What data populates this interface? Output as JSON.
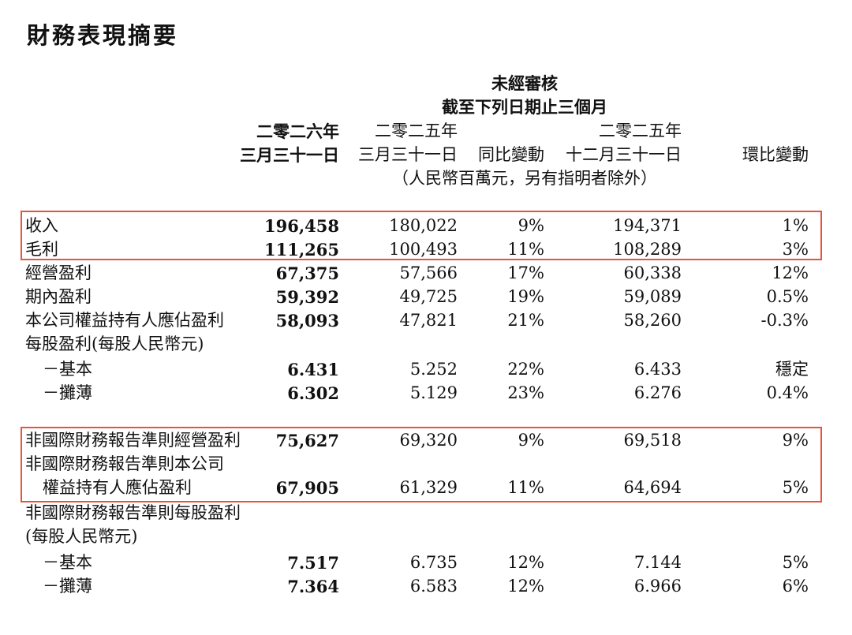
{
  "title": "財務表現摘要",
  "header": {
    "audit": "未經審核",
    "period": "截至下列日期止三個月",
    "col1_year": "二零二六年",
    "col1_date": "三月三十一日",
    "col2_year": "二零二五年",
    "col2_date": "三月三十一日",
    "col3": "同比變動",
    "col4_year": "二零二五年",
    "col4_date": "十二月三十一日",
    "col5": "環比變動",
    "unit": "（人民幣百萬元，另有指明者除外）"
  },
  "rows": [
    {
      "label": "收入",
      "v": [
        "196,458",
        "180,022",
        "9%",
        "194,371",
        "1%"
      ]
    },
    {
      "label": "毛利",
      "v": [
        "111,265",
        "100,493",
        "11%",
        "108,289",
        "3%"
      ]
    },
    {
      "label": "經營盈利",
      "v": [
        "67,375",
        "57,566",
        "17%",
        "60,338",
        "12%"
      ]
    },
    {
      "label": "期內盈利",
      "v": [
        "59,392",
        "49,725",
        "19%",
        "59,089",
        "0.5%"
      ]
    },
    {
      "label": "本公司權益持有人應佔盈利",
      "v": [
        "58,093",
        "47,821",
        "21%",
        "58,260",
        "-0.3%"
      ]
    },
    {
      "label": "每股盈利(每股人民幣元)",
      "v": [
        "",
        "",
        "",
        "",
        ""
      ]
    },
    {
      "label": "－基本",
      "v": [
        "6.431",
        "5.252",
        "22%",
        "6.433",
        "穩定"
      ]
    },
    {
      "label": "－攤薄",
      "v": [
        "6.302",
        "5.129",
        "23%",
        "6.276",
        "0.4%"
      ]
    },
    {
      "label": "非國際財務報告準則經營盈利",
      "v": [
        "75,627",
        "69,320",
        "9%",
        "69,518",
        "9%"
      ]
    },
    {
      "label": "非國際財務報告準則本公司",
      "v": [
        "",
        "",
        "",
        "",
        ""
      ]
    },
    {
      "label": "權益持有人應佔盈利",
      "v": [
        "67,905",
        "61,329",
        "11%",
        "64,694",
        "5%"
      ]
    },
    {
      "label": "非國際財務報告準則每股盈利",
      "v": [
        "",
        "",
        "",
        "",
        ""
      ]
    },
    {
      "label": "(每股人民幣元)",
      "v": [
        "",
        "",
        "",
        "",
        ""
      ]
    },
    {
      "label": "－基本",
      "v": [
        "7.517",
        "6.735",
        "12%",
        "7.144",
        "5%"
      ]
    },
    {
      "label": "－攤薄",
      "v": [
        "7.364",
        "6.583",
        "12%",
        "6.966",
        "6%"
      ]
    }
  ]
}
